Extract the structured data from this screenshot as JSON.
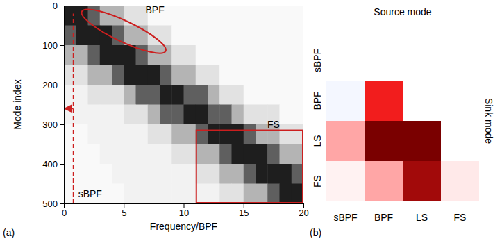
{
  "chart_data": [
    {
      "type": "heatmap",
      "panel": "(a)",
      "x_label": "Frequency/BPF",
      "y_label": "Mode index",
      "xlim": [
        0,
        20
      ],
      "ylim": [
        0,
        500
      ],
      "xticks": [
        0,
        5,
        10,
        15,
        20
      ],
      "yticks": [
        0,
        100,
        200,
        300,
        400,
        500
      ],
      "x_edges": [
        0,
        1,
        2,
        3,
        4,
        5,
        6,
        7,
        8,
        9,
        10,
        11,
        12,
        13,
        14,
        15,
        16,
        17,
        18,
        19,
        20
      ],
      "y_edges": [
        0,
        50,
        100,
        150,
        200,
        250,
        300,
        350,
        400,
        450,
        500
      ],
      "color": "greys",
      "cells": [
        [
          0.9,
          0.9,
          0.7,
          0.4,
          0.4,
          0.2,
          0.2,
          0.05,
          0.05,
          0.05,
          0.05,
          0.05,
          0.05,
          0.05,
          0.05,
          0.05,
          0.05,
          0.05,
          0.05,
          0.05
        ],
        [
          0.7,
          0.9,
          0.9,
          0.9,
          0.7,
          0.4,
          0.4,
          0.2,
          0.2,
          0.05,
          0.05,
          0.05,
          0.05,
          0.05,
          0.05,
          0.05,
          0.05,
          0.05,
          0.05,
          0.05
        ],
        [
          0.4,
          0.4,
          0.7,
          0.9,
          0.9,
          0.9,
          0.7,
          0.4,
          0.4,
          0.2,
          0.2,
          0.05,
          0.05,
          0.05,
          0.05,
          0.05,
          0.05,
          0.05,
          0.05,
          0.05
        ],
        [
          0.2,
          0.2,
          0.4,
          0.4,
          0.7,
          0.9,
          0.9,
          0.9,
          0.7,
          0.4,
          0.4,
          0.2,
          0.2,
          0.05,
          0.05,
          0.05,
          0.05,
          0.05,
          0.05,
          0.05
        ],
        [
          0.1,
          0.1,
          0.2,
          0.2,
          0.2,
          0.4,
          0.7,
          0.7,
          0.9,
          0.9,
          0.7,
          0.7,
          0.4,
          0.2,
          0.2,
          0.05,
          0.05,
          0.05,
          0.05,
          0.05
        ],
        [
          0.1,
          0.1,
          0.1,
          0.1,
          0.1,
          0.2,
          0.2,
          0.4,
          0.7,
          0.7,
          0.9,
          0.9,
          0.7,
          0.7,
          0.4,
          0.2,
          0.2,
          0.2,
          0.05,
          0.05
        ],
        [
          0.05,
          0.05,
          0.1,
          0.1,
          0.1,
          0.1,
          0.1,
          0.2,
          0.2,
          0.4,
          0.4,
          0.7,
          0.9,
          0.9,
          0.9,
          0.7,
          0.4,
          0.4,
          0.2,
          0.2
        ],
        [
          0.05,
          0.05,
          0.05,
          0.1,
          0.1,
          0.1,
          0.1,
          0.1,
          0.1,
          0.2,
          0.2,
          0.4,
          0.4,
          0.7,
          0.9,
          0.9,
          0.9,
          0.7,
          0.4,
          0.4
        ],
        [
          0.05,
          0.05,
          0.05,
          0.05,
          0.1,
          0.1,
          0.1,
          0.1,
          0.1,
          0.1,
          0.1,
          0.2,
          0.2,
          0.4,
          0.4,
          0.7,
          0.9,
          0.9,
          0.9,
          0.7
        ],
        [
          0.05,
          0.05,
          0.05,
          0.05,
          0.05,
          0.1,
          0.1,
          0.1,
          0.1,
          0.1,
          0.1,
          0.1,
          0.1,
          0.2,
          0.2,
          0.4,
          0.4,
          0.7,
          0.9,
          0.9
        ]
      ],
      "annotations": [
        {
          "text": "BPF",
          "x": 7.6,
          "y": 10,
          "ellipse": [
            [
              1.5,
              15
            ],
            [
              8.5,
              115
            ]
          ]
        },
        {
          "text": "FS",
          "x": 17.5,
          "y": 300,
          "box": {
            "x": [
              11,
              20
            ],
            "y": [
              315,
              500
            ]
          }
        },
        {
          "text": "sBPF",
          "x": 1.2,
          "y": 475,
          "line_x": 0.8,
          "line_y": [
            500,
            20
          ],
          "arrow_y": 260
        }
      ]
    },
    {
      "type": "heatmap",
      "panel": "(b)",
      "x_label": "Source mode",
      "y_label": "Sink mode",
      "x": [
        "sBPF",
        "BPF",
        "LS",
        "FS"
      ],
      "y": [
        "sBPF",
        "BPF",
        "LS",
        "FS"
      ],
      "color_range": [
        -1,
        1
      ],
      "cells": [
        [
          0,
          0,
          0,
          0
        ],
        [
          -0.05,
          0.55,
          0,
          0
        ],
        [
          0.2,
          1,
          1,
          0
        ],
        [
          0.03,
          0.2,
          0.85,
          0.05
        ]
      ]
    }
  ]
}
